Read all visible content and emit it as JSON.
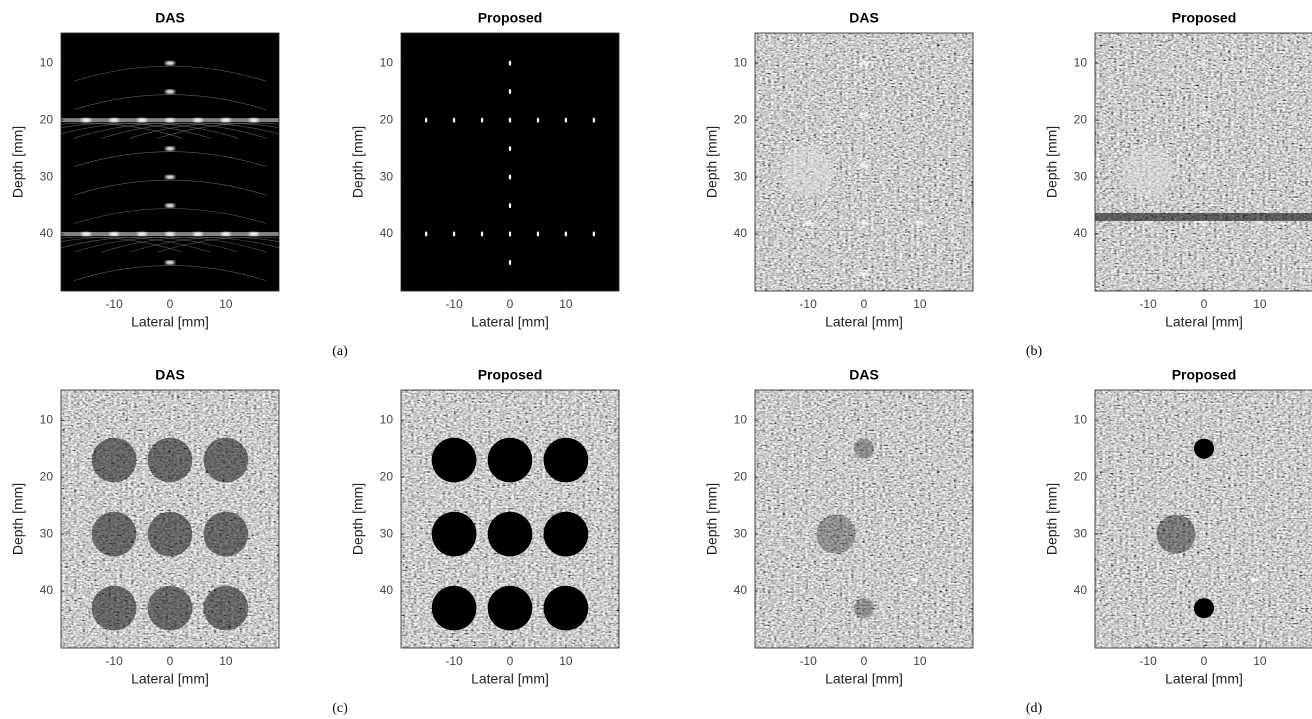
{
  "figures": [
    {
      "label": "(a)",
      "panels": [
        {
          "title": "DAS",
          "xlabel": "Lateral [mm]",
          "ylabel": "Depth [mm]",
          "xlim": [
            -19.5,
            19.5
          ],
          "ylim": [
            4.7,
            50
          ],
          "xticks": [
            -10,
            0,
            10
          ],
          "yticks": [
            10,
            20,
            30,
            40
          ]
        },
        {
          "title": "Proposed",
          "xlabel": "Lateral [mm]",
          "ylabel": "Depth [mm]",
          "xlim": [
            -19.5,
            19.5
          ],
          "ylim": [
            4.7,
            50
          ],
          "xticks": [
            -10,
            0,
            10
          ],
          "yticks": [
            10,
            20,
            30,
            40
          ]
        }
      ]
    },
    {
      "label": "(b)",
      "panels": [
        {
          "title": "DAS",
          "xlabel": "Lateral [mm]",
          "ylabel": "Depth [mm]",
          "xlim": [
            -19.5,
            19.5
          ],
          "ylim": [
            4.7,
            50
          ],
          "xticks": [
            -10,
            0,
            10
          ],
          "yticks": [
            10,
            20,
            30,
            40
          ]
        },
        {
          "title": "Proposed",
          "xlabel": "Lateral [mm]",
          "ylabel": "Depth [mm]",
          "xlim": [
            -19.5,
            19.5
          ],
          "ylim": [
            4.7,
            50
          ],
          "xticks": [
            -10,
            0,
            10
          ],
          "yticks": [
            10,
            20,
            30,
            40
          ]
        }
      ]
    },
    {
      "label": "(c)",
      "panels": [
        {
          "title": "DAS",
          "xlabel": "Lateral [mm]",
          "ylabel": "Depth [mm]",
          "xlim": [
            -19.5,
            19.5
          ],
          "ylim": [
            4.7,
            50
          ],
          "xticks": [
            -10,
            0,
            10
          ],
          "yticks": [
            10,
            20,
            30,
            40
          ]
        },
        {
          "title": "Proposed",
          "xlabel": "Lateral [mm]",
          "ylabel": "Depth [mm]",
          "xlim": [
            -19.5,
            19.5
          ],
          "ylim": [
            4.7,
            50
          ],
          "xticks": [
            -10,
            0,
            10
          ],
          "yticks": [
            10,
            20,
            30,
            40
          ]
        }
      ]
    },
    {
      "label": "(d)",
      "panels": [
        {
          "title": "DAS",
          "xlabel": "Lateral [mm]",
          "ylabel": "Depth [mm]",
          "xlim": [
            -19.5,
            19.5
          ],
          "ylim": [
            4.7,
            50
          ],
          "xticks": [
            -10,
            0,
            10
          ],
          "yticks": [
            10,
            20,
            30,
            40
          ]
        },
        {
          "title": "Proposed",
          "xlabel": "Lateral [mm]",
          "ylabel": "Depth [mm]",
          "xlim": [
            -19.5,
            19.5
          ],
          "ylim": [
            4.7,
            50
          ],
          "xticks": [
            -10,
            0,
            10
          ],
          "yticks": [
            10,
            20,
            30,
            40
          ]
        }
      ]
    }
  ]
}
